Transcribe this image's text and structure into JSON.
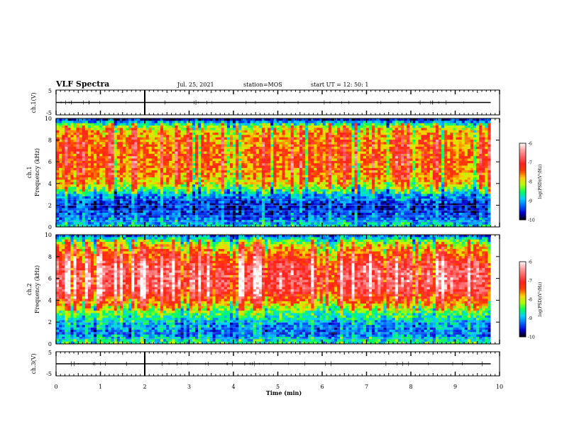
{
  "header": {
    "title": "VLF Spectra",
    "date": "Jul. 25, 2021",
    "station": "station=MOS",
    "start_ut": "start  UT =   12: 50: 1"
  },
  "colorbar": {
    "label": "log(PSD)(V²/Hz)",
    "ticks": [
      "-6",
      "-7",
      "-8",
      "-9",
      "-10"
    ],
    "range": [
      -10,
      -6
    ],
    "colors": [
      "#000000",
      "#0000d0",
      "#0064ff",
      "#00d0ff",
      "#00ff60",
      "#b0ff00",
      "#ffd000",
      "#ff4000",
      "#ff2020",
      "#ff6060",
      "#ffa0a0",
      "#ffffff"
    ]
  },
  "chart_data": [
    {
      "type": "line",
      "panel": "ch1-waveform",
      "ylabel": "ch.1(V)",
      "ylim": [
        -5,
        5
      ],
      "yticks": [
        "5",
        "-5"
      ],
      "x": [
        0,
        9.8
      ],
      "y": [
        0,
        0
      ]
    },
    {
      "type": "heatmap",
      "panel": "ch1-spectrogram",
      "ylabel": "ch.1\nFrequency (kHz)",
      "ylim": [
        0,
        10
      ],
      "yticks": [
        "10",
        "8",
        "6",
        "4",
        "2",
        "0"
      ],
      "xlim": [
        0,
        9.8
      ],
      "value_range": [
        -10,
        -6
      ],
      "band_profile_khz": [
        0,
        1,
        2,
        3,
        4,
        5,
        6,
        7,
        8,
        9,
        9.5,
        10
      ],
      "band_profile_logpsd": [
        -8.8,
        -9.4,
        -9.6,
        -9.1,
        -8.0,
        -7.7,
        -7.6,
        -7.6,
        -7.7,
        -8.0,
        -8.8,
        -9.8
      ],
      "narrowband_lines_khz": [
        0.5,
        1.0,
        1.5,
        2.0,
        2.5
      ]
    },
    {
      "type": "heatmap",
      "panel": "ch2-spectrogram",
      "ylabel": "ch.2\nFrequency (kHz)",
      "ylim": [
        0,
        10
      ],
      "yticks": [
        "10",
        "8",
        "6",
        "4",
        "2",
        "0"
      ],
      "xlim": [
        0,
        9.8
      ],
      "value_range": [
        -10,
        -6
      ],
      "band_profile_khz": [
        0,
        1,
        2,
        3,
        4,
        5,
        6,
        7,
        8,
        9,
        9.5,
        10
      ],
      "band_profile_logpsd": [
        -8.6,
        -9.3,
        -9.0,
        -8.4,
        -7.5,
        -6.9,
        -6.8,
        -6.9,
        -7.4,
        -8.0,
        -8.6,
        -9.4
      ],
      "narrowband_lines_khz": [
        0.5,
        1.0,
        1.5,
        2.0
      ]
    },
    {
      "type": "line",
      "panel": "ch3-waveform",
      "ylabel": "ch.3(V)",
      "ylim": [
        -5,
        5
      ],
      "yticks": [
        "5",
        "-5"
      ],
      "x": [
        0,
        9.8
      ],
      "y": [
        0,
        0
      ]
    }
  ],
  "xaxis": {
    "label": "Time (min)",
    "ticks": [
      "0",
      "1",
      "2",
      "3",
      "4",
      "5",
      "6",
      "7",
      "8",
      "9",
      "10"
    ],
    "range": [
      0,
      10
    ]
  }
}
